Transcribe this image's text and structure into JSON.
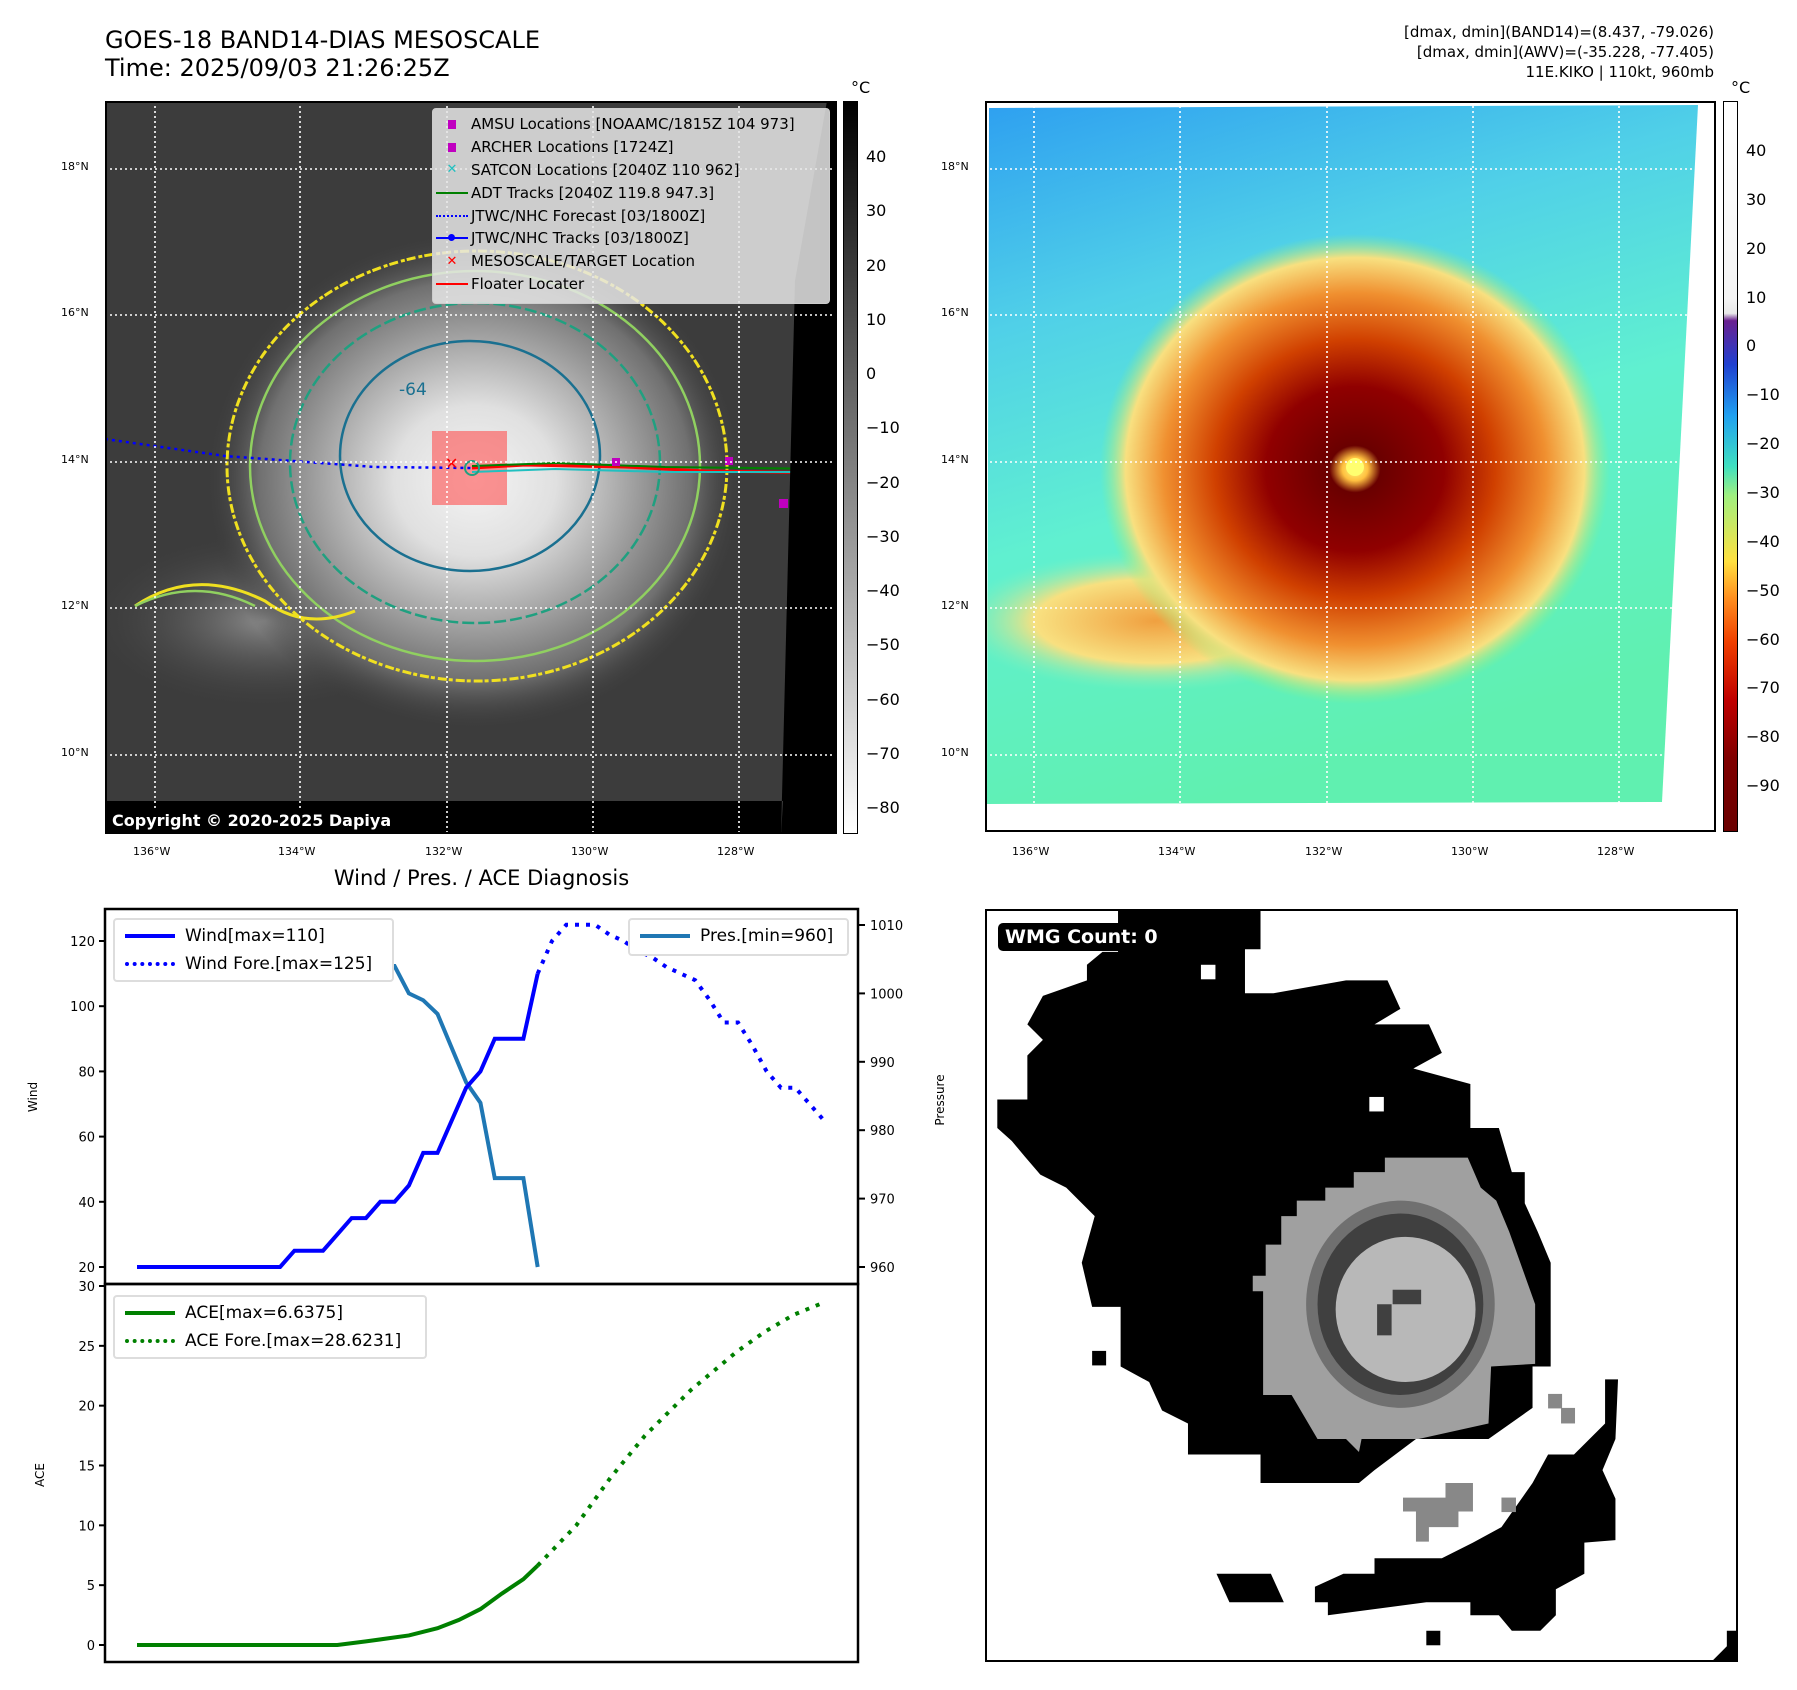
{
  "header": {
    "title": "GOES-18 BAND14-DIAS MESOSCALE",
    "time": "Time: 2025/09/03 21:26:25Z",
    "stats": [
      "[dmax, dmin](BAND14)=(8.437, -79.026)",
      "[dmax, dmin](AWV)=(-35.228, -77.405)",
      "11E.KIKO | 110kt, 960mb"
    ]
  },
  "map_left": {
    "lat_labels": [
      "18°N",
      "16°N",
      "14°N",
      "12°N",
      "10°N"
    ],
    "lon_labels": [
      "136°W",
      "134°W",
      "132°W",
      "130°W",
      "128°W"
    ],
    "legend": [
      {
        "label": "AMSU Locations [NOAAMC/1815Z 104 973]",
        "icon": "square-marker",
        "color": "#c000c0"
      },
      {
        "label": "ARCHER Locations [1724Z]",
        "icon": "square-marker",
        "color": "#c000c0"
      },
      {
        "label": "SATCON Locations [2040Z 110 962]",
        "icon": "x-marker",
        "color": "#20c0c0"
      },
      {
        "label": "ADT Tracks [2040Z 119.8 947.3]",
        "icon": "line",
        "color": "#008000"
      },
      {
        "label": "JTWC/NHC Forecast [03/1800Z]",
        "icon": "dotted-line",
        "color": "#0000ff"
      },
      {
        "label": "JTWC/NHC Tracks [03/1800Z]",
        "icon": "line-dot",
        "color": "#0000ff"
      },
      {
        "label": "MESOSCALE/TARGET Location",
        "icon": "x-marker",
        "color": "#ff0000"
      },
      {
        "label": "Floater Locater",
        "icon": "line",
        "color": "#ff0000"
      }
    ],
    "contour_label": "-64",
    "copyright": "Copyright © 2020-2025 Dapiya",
    "colorbar": {
      "unit": "°C",
      "ticks": [
        "40",
        "30",
        "20",
        "10",
        "0",
        "−10",
        "−20",
        "−30",
        "−40",
        "−50",
        "−60",
        "−70",
        "−80"
      ]
    }
  },
  "map_right": {
    "lat_labels": [
      "18°N",
      "16°N",
      "14°N",
      "12°N",
      "10°N"
    ],
    "lon_labels": [
      "136°W",
      "134°W",
      "132°W",
      "130°W",
      "128°W"
    ],
    "colorbar": {
      "unit": "°C",
      "ticks": [
        "40",
        "30",
        "20",
        "10",
        "0",
        "−10",
        "−20",
        "−30",
        "−40",
        "−50",
        "−60",
        "−70",
        "−80",
        "−90"
      ]
    }
  },
  "chart_data": [
    {
      "type": "line",
      "title": "Wind / Pres. / ACE Diagnosis",
      "ylabel": "Wind",
      "ylabel_right": "Pressure",
      "ylim": [
        15,
        130
      ],
      "ylim_right": [
        958,
        1012
      ],
      "xlim": [
        -1.2,
        49.5
      ],
      "yticks": [
        "120",
        "100",
        "80",
        "60",
        "40",
        "20"
      ],
      "yticks_right": [
        "1010",
        "1000",
        "990",
        "980",
        "970",
        "960"
      ],
      "series": [
        {
          "name": "Wind[max=110]",
          "color": "#0000ff",
          "style": "solid",
          "x": [
            0,
            10,
            11,
            13,
            15,
            16,
            17,
            18,
            19,
            20,
            21,
            22,
            23,
            24,
            25,
            27,
            28
          ],
          "values": [
            20,
            20,
            25,
            25,
            35,
            35,
            40,
            40,
            45,
            55,
            55,
            65,
            75,
            80,
            90,
            90,
            110
          ]
        },
        {
          "name": "Wind Fore.[max=125]",
          "color": "#0000ff",
          "style": "dotted",
          "x": [
            28,
            29,
            30,
            31,
            32,
            33,
            34,
            35,
            36,
            37,
            38,
            39,
            40,
            41,
            42,
            43,
            44,
            45,
            46,
            47,
            48
          ],
          "values": [
            110,
            120,
            125,
            125,
            125,
            122,
            120,
            117,
            115,
            112,
            110,
            108,
            102,
            95,
            95,
            88,
            80,
            75,
            75,
            70,
            65
          ]
        },
        {
          "name": "Pres.[min=960]",
          "color": "#1f77b4",
          "style": "solid",
          "axis": "right",
          "x": [
            0,
            11,
            12,
            14,
            15,
            16,
            17,
            18,
            19,
            20,
            21,
            23,
            24,
            25,
            27,
            28
          ],
          "values": [
            1010,
            1010,
            1009,
            1009,
            1007,
            1006,
            1004,
            1004,
            1000,
            999,
            997,
            987,
            984,
            973,
            973,
            960
          ]
        }
      ]
    },
    {
      "type": "line",
      "ylabel": "ACE",
      "ylim": [
        -1.3,
        30.2
      ],
      "xlim": [
        -1.2,
        49.5
      ],
      "yticks": [
        "30",
        "25",
        "20",
        "15",
        "10",
        "5",
        "0"
      ],
      "series": [
        {
          "name": "ACE[max=6.6375]",
          "color": "#008000",
          "style": "solid",
          "x": [
            0,
            14.0,
            7,
            14,
            16,
            19,
            21,
            22.5,
            24,
            25.5,
            27,
            28
          ],
          "values": [
            0,
            0,
            0,
            0,
            0.3,
            0.8,
            1.4,
            2.1,
            3.0,
            4.3,
            5.5,
            6.6375
          ]
        },
        {
          "name": "ACE Fore.[max=28.6231]",
          "color": "#008000",
          "style": "dotted",
          "x": [
            28,
            30.7,
            33.1,
            35.5,
            38.7,
            41.9,
            43.9,
            45.9,
            48
          ],
          "values": [
            6.6375,
            10,
            14,
            17.5,
            21.3,
            24.5,
            26.2,
            27.6,
            28.6231
          ]
        }
      ]
    }
  ],
  "wmg": {
    "label": "WMG Count: 0"
  }
}
